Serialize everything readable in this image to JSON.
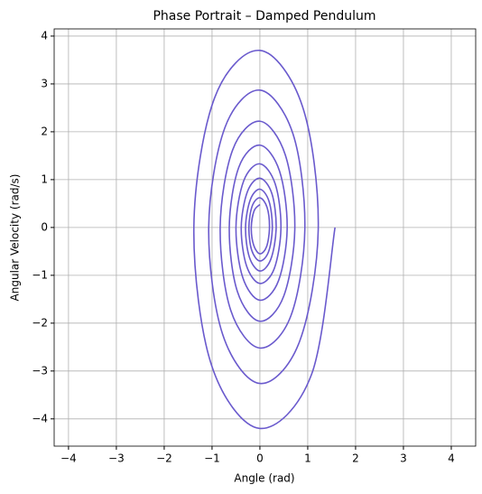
{
  "chart_data": {
    "type": "line",
    "title": "Phase Portrait – Damped Pendulum",
    "xlabel": "Angle (rad)",
    "ylabel": "Angular Velocity (rad/s)",
    "color": "#6a5acd",
    "grid": true,
    "xlim": [
      -4.3,
      4.51
    ],
    "ylim": [
      -4.57,
      4.15
    ],
    "xticks": [
      {
        "value": -4,
        "label": "−4"
      },
      {
        "value": -3,
        "label": "−3"
      },
      {
        "value": -2,
        "label": "−2"
      },
      {
        "value": -1,
        "label": "−1"
      },
      0,
      1,
      2,
      3,
      4
    ],
    "yticks": [
      {
        "value": -4,
        "label": "−4"
      },
      {
        "value": -3,
        "label": "−3"
      },
      {
        "value": -2,
        "label": "−2"
      },
      {
        "value": -1,
        "label": "−1"
      },
      0,
      1,
      2,
      3,
      4
    ],
    "x": [
      1.57,
      1.08,
      0,
      -1.01,
      -1.38,
      -0.95,
      0,
      0.89,
      1.22,
      0.83,
      0,
      -0.78,
      -1.07,
      -0.73,
      0,
      0.69,
      0.94,
      0.65,
      0,
      -0.61,
      -0.83,
      -0.57,
      0,
      0.53,
      0.73,
      0.5,
      0,
      -0.47,
      -0.64,
      -0.44,
      0,
      0.41,
      0.57,
      0.39,
      0,
      -0.36,
      -0.5,
      -0.34,
      0,
      0.32,
      0.44,
      0.3,
      0,
      -0.28,
      -0.39,
      -0.26,
      0,
      0.25,
      0.34,
      0.23,
      0,
      -0.22,
      -0.3,
      -0.2,
      0,
      0.19,
      0.26,
      0.18,
      0,
      -0.17,
      -0.23,
      -0.16,
      0,
      0.15,
      0.2,
      0.14,
      0,
      -0.13,
      -0.18,
      -0.12,
      0
    ],
    "values": [
      0,
      -3.07,
      -4.2,
      -2.88,
      0,
      2.7,
      3.7,
      2.53,
      0,
      -2.38,
      -3.26,
      -2.23,
      0,
      2.09,
      2.87,
      1.96,
      0,
      -1.84,
      -2.52,
      -1.73,
      0,
      1.62,
      2.22,
      1.52,
      0,
      -1.43,
      -1.96,
      -1.34,
      0,
      1.26,
      1.72,
      1.18,
      0,
      -1.11,
      -1.52,
      -1.04,
      0,
      0.97,
      1.33,
      0.91,
      0,
      -0.86,
      -1.17,
      -0.8,
      0,
      0.75,
      1.03,
      0.71,
      0,
      -0.66,
      -0.91,
      -0.62,
      0,
      0.58,
      0.8,
      0.55,
      0,
      -0.51,
      -0.7,
      -0.48,
      0,
      0.45,
      0.62,
      0.42,
      0,
      -0.4,
      -0.55,
      -0.37,
      0,
      0.35,
      0.48
    ]
  }
}
